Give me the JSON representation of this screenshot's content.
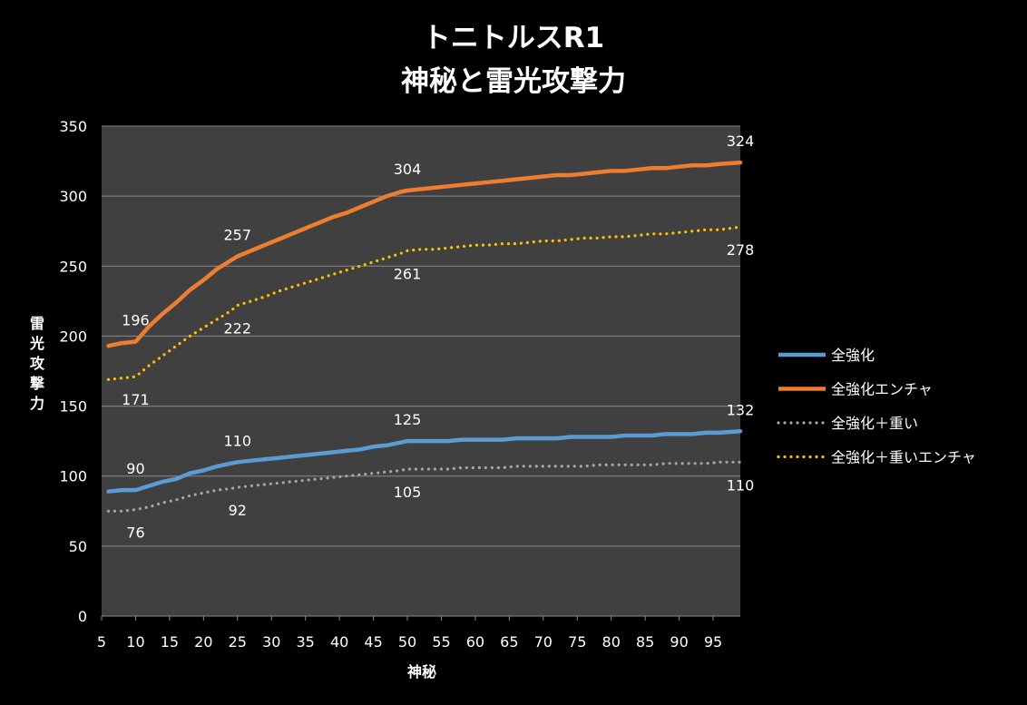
{
  "chart_data": {
    "type": "line",
    "title": [
      "トニトルスR1",
      "神秘と雷光攻撃力"
    ],
    "xlabel": "神秘",
    "ylabel": "雷光攻撃力",
    "xlim": [
      5,
      99
    ],
    "ylim": [
      0,
      350
    ],
    "x_ticks": [
      5,
      10,
      15,
      20,
      25,
      30,
      35,
      40,
      45,
      50,
      55,
      60,
      65,
      70,
      75,
      80,
      85,
      90,
      95
    ],
    "y_ticks": [
      0,
      50,
      100,
      150,
      200,
      250,
      300,
      350
    ],
    "grid": "horizontal",
    "legend_position": "right",
    "x": [
      6,
      8,
      10,
      12,
      14,
      16,
      18,
      20,
      22,
      24,
      25,
      27,
      29,
      31,
      33,
      35,
      37,
      39,
      41,
      43,
      45,
      47,
      49,
      50,
      52,
      54,
      56,
      58,
      60,
      62,
      64,
      66,
      68,
      70,
      72,
      74,
      76,
      78,
      80,
      82,
      84,
      86,
      88,
      90,
      92,
      94,
      96,
      99
    ],
    "series": [
      {
        "name": "全強化",
        "color": "#5b9bd5",
        "style": "solid",
        "values": [
          89,
          90,
          90,
          93,
          96,
          98,
          102,
          104,
          107,
          109,
          110,
          111,
          112,
          113,
          114,
          115,
          116,
          117,
          118,
          119,
          121,
          122,
          124,
          125,
          125,
          125,
          125,
          126,
          126,
          126,
          126,
          127,
          127,
          127,
          127,
          128,
          128,
          128,
          128,
          129,
          129,
          129,
          130,
          130,
          130,
          131,
          131,
          132
        ]
      },
      {
        "name": "全強化エンチャ",
        "color": "#ed7d31",
        "style": "solid",
        "values": [
          193,
          195,
          196,
          207,
          216,
          224,
          233,
          240,
          248,
          254,
          257,
          261,
          265,
          269,
          273,
          277,
          281,
          285,
          288,
          292,
          296,
          300,
          303,
          304,
          305,
          306,
          307,
          308,
          309,
          310,
          311,
          312,
          313,
          314,
          315,
          315,
          316,
          317,
          318,
          318,
          319,
          320,
          320,
          321,
          322,
          322,
          323,
          324
        ]
      },
      {
        "name": "全強化＋重い",
        "color": "#a5a5a5",
        "style": "dotted",
        "values": [
          75,
          75,
          76,
          78,
          81,
          83,
          86,
          88,
          90,
          91,
          92,
          93,
          94,
          95,
          96,
          97,
          98,
          99,
          100,
          101,
          102,
          103,
          104,
          105,
          105,
          105,
          105,
          106,
          106,
          106,
          106,
          107,
          107,
          107,
          107,
          107,
          107,
          108,
          108,
          108,
          108,
          108,
          109,
          109,
          109,
          109,
          110,
          110
        ]
      },
      {
        "name": "全強化＋重いエンチャ",
        "color": "#ffc000",
        "style": "dotted",
        "values": [
          169,
          170,
          171,
          179,
          186,
          193,
          200,
          206,
          212,
          218,
          222,
          225,
          228,
          232,
          235,
          238,
          241,
          244,
          247,
          250,
          253,
          256,
          259,
          261,
          262,
          262,
          263,
          264,
          265,
          265,
          266,
          266,
          267,
          268,
          268,
          269,
          270,
          270,
          271,
          271,
          272,
          273,
          273,
          274,
          275,
          276,
          276,
          278
        ]
      }
    ],
    "data_labels": [
      {
        "series": 0,
        "x": 10,
        "value": 90,
        "pos": "above"
      },
      {
        "series": 0,
        "x": 25,
        "value": 110,
        "pos": "above"
      },
      {
        "series": 0,
        "x": 50,
        "value": 125,
        "pos": "above"
      },
      {
        "series": 0,
        "x": 99,
        "value": 132,
        "pos": "above"
      },
      {
        "series": 1,
        "x": 10,
        "value": 196,
        "pos": "above"
      },
      {
        "series": 1,
        "x": 25,
        "value": 257,
        "pos": "above"
      },
      {
        "series": 1,
        "x": 50,
        "value": 304,
        "pos": "above"
      },
      {
        "series": 1,
        "x": 99,
        "value": 324,
        "pos": "above"
      },
      {
        "series": 2,
        "x": 10,
        "value": 76,
        "pos": "below"
      },
      {
        "series": 2,
        "x": 25,
        "value": 92,
        "pos": "below"
      },
      {
        "series": 2,
        "x": 50,
        "value": 105,
        "pos": "below"
      },
      {
        "series": 2,
        "x": 99,
        "value": 110,
        "pos": "below"
      },
      {
        "series": 3,
        "x": 10,
        "value": 171,
        "pos": "below"
      },
      {
        "series": 3,
        "x": 25,
        "value": 222,
        "pos": "below"
      },
      {
        "series": 3,
        "x": 50,
        "value": 261,
        "pos": "below"
      },
      {
        "series": 3,
        "x": 99,
        "value": 278,
        "pos": "below"
      }
    ]
  }
}
